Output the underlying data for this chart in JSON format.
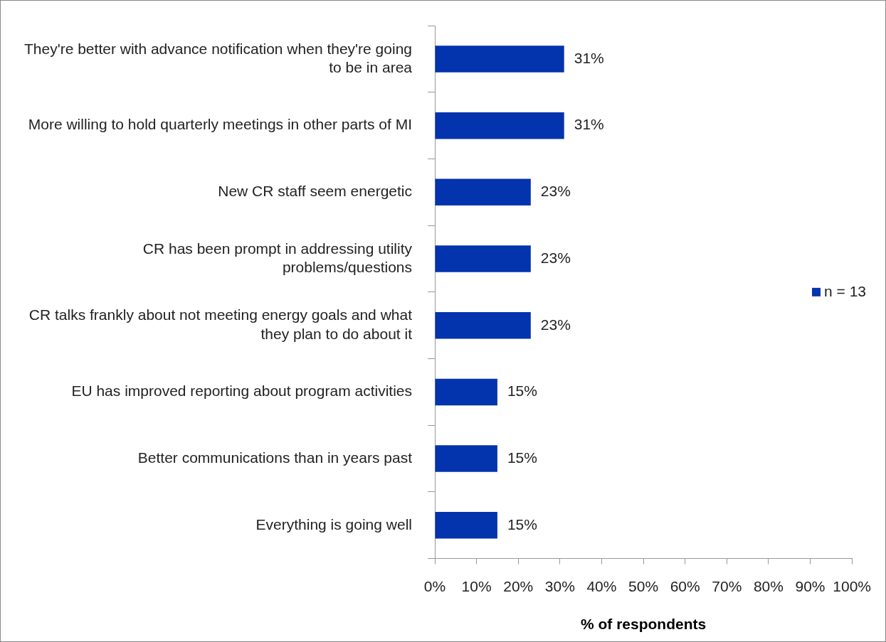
{
  "chart_data": {
    "type": "bar",
    "orientation": "horizontal",
    "xlabel": "% of respondents",
    "categories": [
      "They're better with advance notification when they're going to be in area",
      "More willing to hold quarterly meetings in other parts of MI",
      "New CR staff seem energetic",
      "CR has been prompt in addressing utility problems/questions",
      "CR talks frankly about not meeting energy goals and what they plan to do about it",
      "EU has improved reporting about program activities",
      "Better communications than in years past",
      "Everything is going well"
    ],
    "series": [
      {
        "name": "n = 13",
        "color": "#0433ae",
        "values": [
          31,
          31,
          23,
          23,
          23,
          15,
          15,
          15
        ],
        "value_labels": [
          "31%",
          "31%",
          "23%",
          "23%",
          "23%",
          "15%",
          "15%",
          "15%"
        ]
      }
    ],
    "xlim": [
      0,
      100
    ],
    "xticks": [
      {
        "value": 0,
        "label": "0%"
      },
      {
        "value": 10,
        "label": "10%"
      },
      {
        "value": 20,
        "label": "20%"
      },
      {
        "value": 30,
        "label": "30%"
      },
      {
        "value": 40,
        "label": "40%"
      },
      {
        "value": 50,
        "label": "50%"
      },
      {
        "value": 60,
        "label": "60%"
      },
      {
        "value": 70,
        "label": "70%"
      },
      {
        "value": 80,
        "label": "80%"
      },
      {
        "value": 90,
        "label": "90%"
      },
      {
        "value": 100,
        "label": "100%"
      }
    ],
    "grid": false,
    "legend": "right"
  }
}
